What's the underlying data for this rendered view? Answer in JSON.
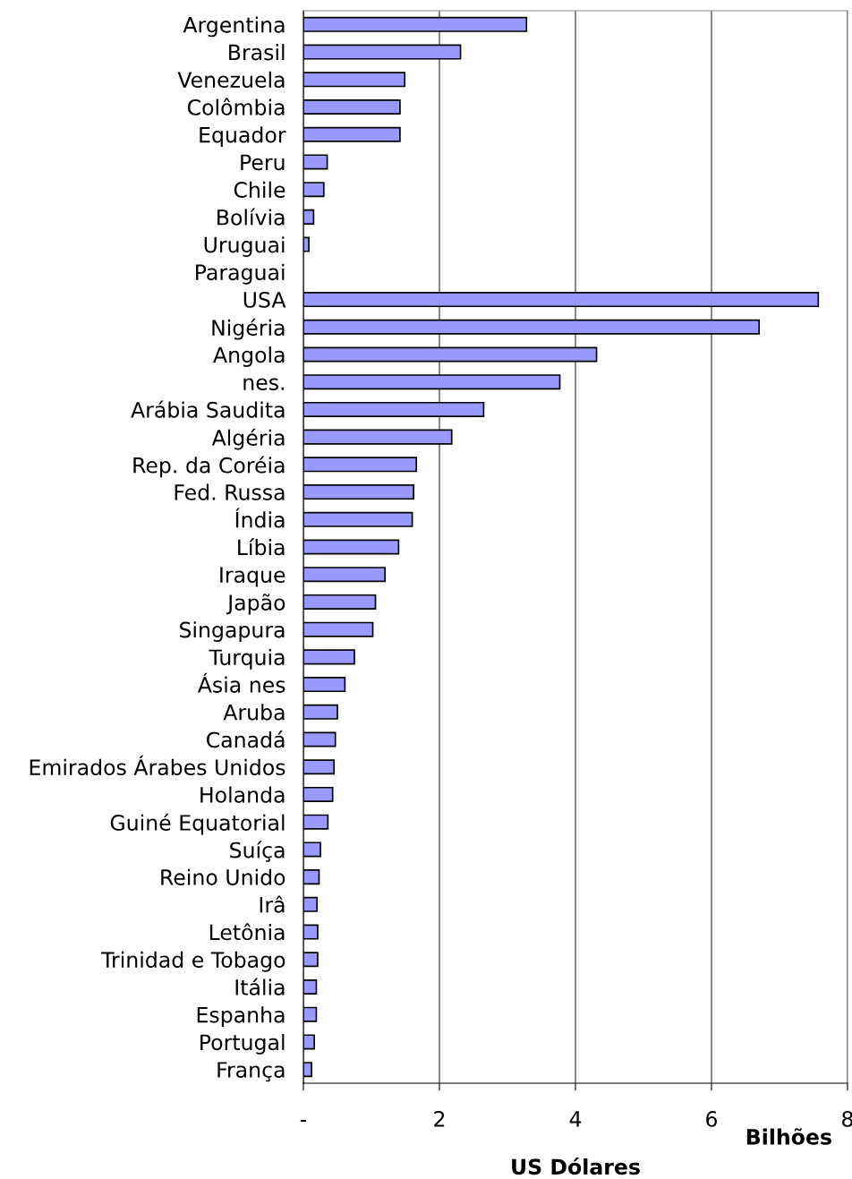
{
  "chart_data": {
    "type": "bar",
    "orientation": "horizontal",
    "categories": [
      "Argentina",
      "Brasil",
      "Venezuela",
      "Colômbia",
      "Equador",
      "Peru",
      "Chile",
      "Bolívia",
      "Uruguai",
      "Paraguai",
      "USA",
      "Nigéria",
      "Angola",
      "nes.",
      "Arábia Saudita",
      "Algéria",
      "Rep. da Coréia",
      "Fed. Russa",
      "Índia",
      "Líbia",
      "Iraque",
      "Japão",
      "Singapura",
      "Turquia",
      "Ásia nes",
      "Aruba",
      "Canadá",
      "Emirados Árabes Unidos",
      "Holanda",
      "Guiné Equatorial",
      "Suíça",
      "Reino Unido",
      "Irâ",
      "Letônia",
      "Trinidad e Tobago",
      "Itália",
      "Espanha",
      "Portugal",
      "França"
    ],
    "values": [
      3.28,
      2.31,
      1.49,
      1.42,
      1.42,
      0.35,
      0.3,
      0.15,
      0.08,
      null,
      7.57,
      6.7,
      4.31,
      3.77,
      2.65,
      2.18,
      1.66,
      1.62,
      1.6,
      1.4,
      1.2,
      1.06,
      1.02,
      0.75,
      0.61,
      0.5,
      0.47,
      0.45,
      0.43,
      0.36,
      0.25,
      0.23,
      0.2,
      0.21,
      0.21,
      0.19,
      0.19,
      0.16,
      0.12
    ],
    "color": "#9999ff",
    "xlim": [
      0,
      8
    ],
    "xticks": [
      {
        "value": 0,
        "label": "-"
      },
      2,
      4,
      6,
      8
    ],
    "xlabel": "US Dólares",
    "annotations": [
      "Bilhões"
    ],
    "grid": "x"
  }
}
